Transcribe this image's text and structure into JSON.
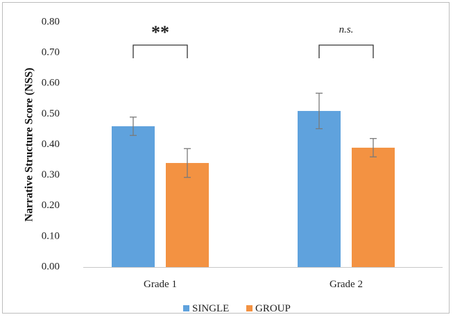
{
  "chart_data": {
    "type": "bar",
    "ylabel": "Narrative Structure Score (NSS)",
    "xlabel": "",
    "ylim": [
      0,
      0.8
    ],
    "yticks": [
      "0.00",
      "0.10",
      "0.20",
      "0.30",
      "0.40",
      "0.50",
      "0.60",
      "0.70",
      "0.80"
    ],
    "categories": [
      "Grade 1",
      "Grade 2"
    ],
    "series": [
      {
        "name": "SINGLE",
        "color": "#5fa2dd",
        "values": [
          0.46,
          0.51
        ],
        "errors": [
          0.03,
          0.058
        ]
      },
      {
        "name": "GROUP",
        "color": "#f39242",
        "values": [
          0.34,
          0.39
        ],
        "errors": [
          0.047,
          0.03
        ]
      }
    ],
    "significance": [
      "**",
      "n.s."
    ],
    "legend_position": "bottom-center",
    "grid": false
  }
}
